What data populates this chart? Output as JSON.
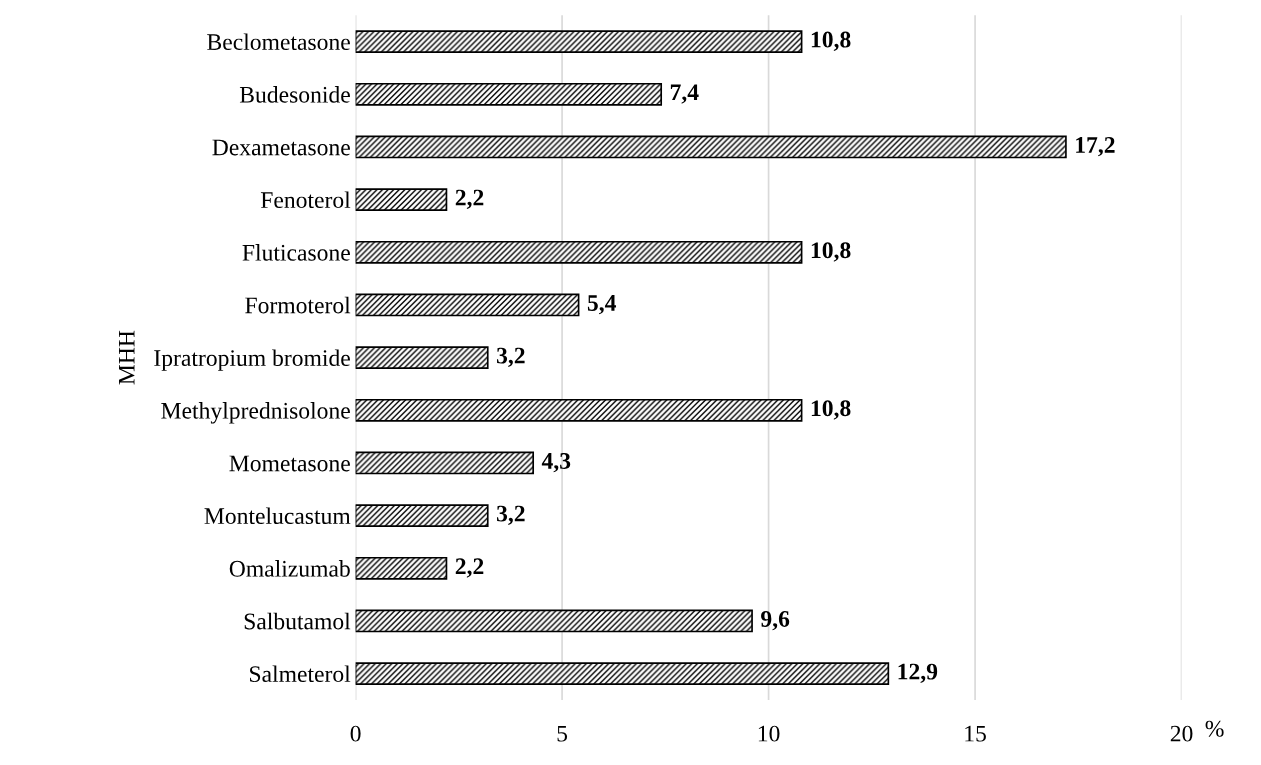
{
  "chart_data": {
    "type": "bar",
    "orientation": "horizontal",
    "categories": [
      "Beclometasone",
      "Budesonide",
      "Dexametasone",
      "Fenoterol",
      "Fluticasone",
      "Formoterol",
      "Ipratropium bromide",
      "Methylprednisolone",
      "Mometasone",
      "Montelucastum",
      "Omalizumab",
      "Salbutamol",
      "Salmeterol"
    ],
    "values": [
      10.8,
      7.4,
      17.2,
      2.2,
      10.8,
      5.4,
      3.2,
      10.8,
      4.3,
      3.2,
      2.2,
      9.6,
      12.9
    ],
    "value_labels": [
      "10,8",
      "7,4",
      "17,2",
      "2,2",
      "10,8",
      "5,4",
      "3,2",
      "10,8",
      "4,3",
      "3,2",
      "2,2",
      "9,6",
      "12,9"
    ],
    "color": "#000000",
    "ylabel": "МНН",
    "xlabel": "%",
    "xlim": [
      0,
      20
    ],
    "xticks": [
      0,
      5,
      10,
      15,
      20
    ],
    "grid": "x",
    "legend": false
  }
}
